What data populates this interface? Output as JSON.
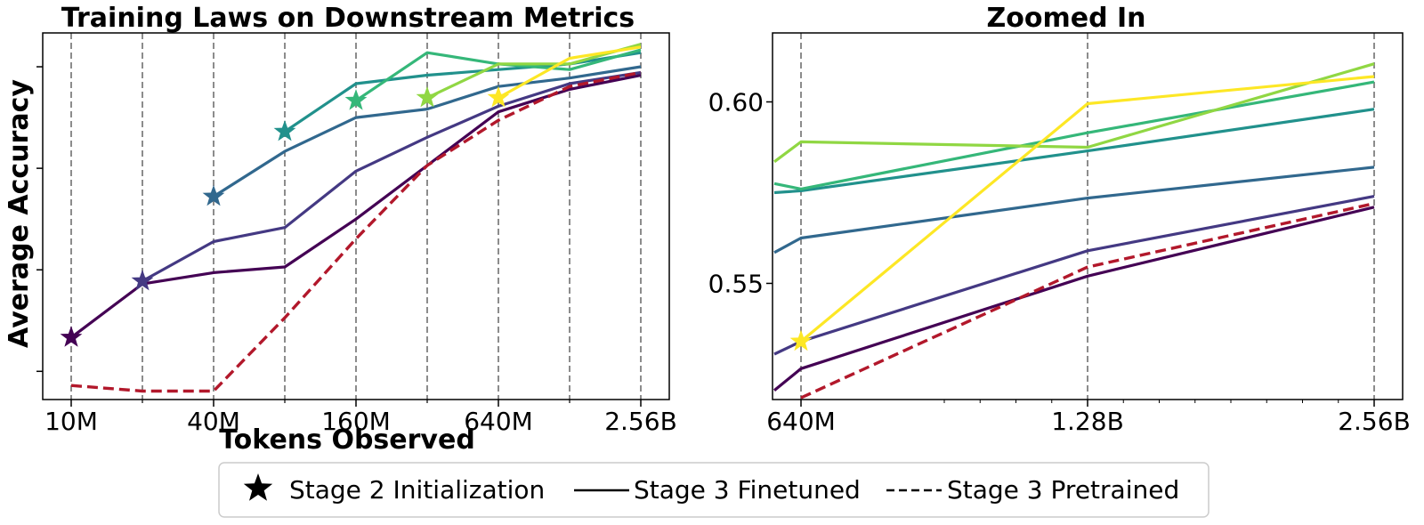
{
  "legend": {
    "items": [
      {
        "label": "Stage 2 Initialization",
        "kind": "star"
      },
      {
        "label": "Stage 3 Finetuned",
        "kind": "solid"
      },
      {
        "label": "Stage 3 Pretrained",
        "kind": "dashed"
      }
    ]
  },
  "chart_data": [
    {
      "type": "line",
      "title": "Training Laws on Downstream Metrics",
      "xlabel": "Tokens Observed",
      "ylabel": "Average Accuracy",
      "xscale": "log2",
      "x": [
        10,
        20,
        40,
        80,
        160,
        320,
        640,
        1280,
        2560
      ],
      "xtick_values": [
        10,
        40,
        160,
        640,
        2560
      ],
      "xtick_labels": [
        "10M",
        "40M",
        "160M",
        "640M",
        "2.56B"
      ],
      "ylim": [
        0.495,
        0.625
      ],
      "ytick_values": [
        0.505,
        0.541,
        0.577,
        0.613
      ],
      "ytick_labels": [
        "",
        "",
        "",
        ""
      ],
      "vlines": [
        10,
        20,
        40,
        80,
        160,
        320,
        640,
        1280,
        2560
      ],
      "series": [
        {
          "name": "init 10M",
          "color": "#440154",
          "style": "solid",
          "x": [
            10,
            20,
            40,
            80,
            160,
            320,
            640,
            1280,
            2560
          ],
          "y": [
            0.517,
            0.536,
            0.54,
            0.542,
            0.559,
            0.578,
            0.597,
            0.605,
            0.61
          ],
          "star_x": 10
        },
        {
          "name": "init 20M",
          "color": "#443983",
          "style": "solid",
          "x": [
            20,
            40,
            80,
            160,
            320,
            640,
            1280,
            2560
          ],
          "y": [
            0.537,
            0.551,
            0.556,
            0.576,
            0.588,
            0.599,
            0.607,
            0.611
          ],
          "star_x": 20
        },
        {
          "name": "init 40M",
          "color": "#31688e",
          "style": "solid",
          "x": [
            40,
            80,
            160,
            320,
            640,
            1280,
            2560
          ],
          "y": [
            0.567,
            0.583,
            0.595,
            0.598,
            0.606,
            0.609,
            0.613
          ],
          "star_x": 40
        },
        {
          "name": "init 80M",
          "color": "#21918c",
          "style": "solid",
          "x": [
            80,
            160,
            320,
            640,
            1280,
            2560
          ],
          "y": [
            0.59,
            0.607,
            0.61,
            0.612,
            0.614,
            0.618
          ],
          "star_x": 80
        },
        {
          "name": "init 160M",
          "color": "#35b779",
          "style": "solid",
          "x": [
            160,
            320,
            640,
            1280,
            2560
          ],
          "y": [
            0.601,
            0.618,
            0.614,
            0.612,
            0.619
          ],
          "star_x": 160
        },
        {
          "name": "init 320M",
          "color": "#90d743",
          "style": "solid",
          "x": [
            320,
            640,
            1280,
            2560
          ],
          "y": [
            0.602,
            0.614,
            0.614,
            0.621
          ],
          "star_x": 320
        },
        {
          "name": "init 640M",
          "color": "#fde725",
          "style": "solid",
          "x": [
            640,
            1280,
            2560
          ],
          "y": [
            0.602,
            0.616,
            0.62
          ],
          "star_x": 640
        },
        {
          "name": "Stage 3 Pretrained",
          "color": "#b2182b",
          "style": "dashed",
          "x": [
            10,
            20,
            40,
            80,
            160,
            320,
            640,
            1280,
            2560
          ],
          "y": [
            0.5,
            0.498,
            0.498,
            0.524,
            0.552,
            0.578,
            0.594,
            0.606,
            0.611
          ],
          "star_x": null
        }
      ]
    },
    {
      "type": "line",
      "title": "Zoomed In",
      "xlabel": "",
      "ylabel": "",
      "xscale": "log2",
      "x": [
        640,
        1280,
        2560
      ],
      "xtick_values": [
        640,
        1280,
        2560
      ],
      "xtick_labels": [
        "640M",
        "1.28B",
        "2.56B"
      ],
      "ylim": [
        0.518,
        0.619
      ],
      "ytick_values": [
        0.55,
        0.6
      ],
      "ytick_labels": [
        "0.55",
        "0.60"
      ],
      "vlines": [
        640,
        1280,
        2560
      ],
      "series": [
        {
          "name": "init 10M",
          "color": "#440154",
          "style": "solid",
          "x": [
            600,
            640,
            1280,
            2560
          ],
          "y": [
            0.5205,
            0.5265,
            0.552,
            0.571
          ],
          "star_x": null
        },
        {
          "name": "init 20M",
          "color": "#443983",
          "style": "solid",
          "x": [
            600,
            640,
            1280,
            2560
          ],
          "y": [
            0.5305,
            0.534,
            0.559,
            0.574
          ],
          "star_x": null
        },
        {
          "name": "init 40M",
          "color": "#31688e",
          "style": "solid",
          "x": [
            600,
            640,
            1280,
            2560
          ],
          "y": [
            0.5585,
            0.5625,
            0.5735,
            0.582
          ],
          "star_x": null
        },
        {
          "name": "init 80M",
          "color": "#21918c",
          "style": "solid",
          "x": [
            600,
            640,
            1280,
            2560
          ],
          "y": [
            0.575,
            0.5755,
            0.5865,
            0.598
          ],
          "star_x": null
        },
        {
          "name": "init 160M",
          "color": "#35b779",
          "style": "solid",
          "x": [
            600,
            640,
            1280,
            2560
          ],
          "y": [
            0.5775,
            0.576,
            0.5915,
            0.6055
          ],
          "star_x": null
        },
        {
          "name": "init 320M",
          "color": "#90d743",
          "style": "solid",
          "x": [
            600,
            640,
            1280,
            2560
          ],
          "y": [
            0.5835,
            0.589,
            0.5875,
            0.6105
          ],
          "star_x": null
        },
        {
          "name": "init 640M",
          "color": "#fde725",
          "style": "solid",
          "x": [
            640,
            1280,
            2560
          ],
          "y": [
            0.534,
            0.5995,
            0.607
          ],
          "star_x": 640
        },
        {
          "name": "Stage 3 Pretrained",
          "color": "#b2182b",
          "style": "dashed",
          "x": [
            640,
            1280,
            2560
          ],
          "y": [
            0.5185,
            0.5545,
            0.572
          ],
          "star_x": null
        }
      ]
    }
  ]
}
